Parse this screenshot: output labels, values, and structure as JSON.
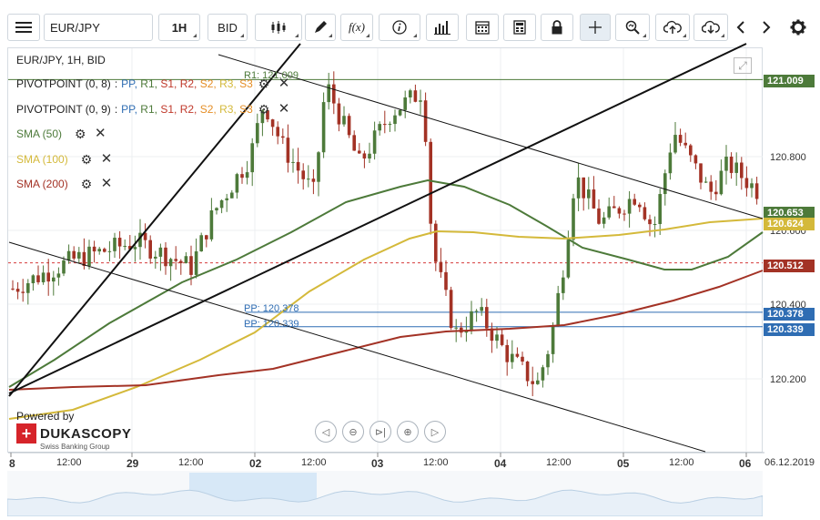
{
  "toolbar": {
    "menu_icon": "hamburger-icon",
    "symbol": "EUR/JPY",
    "timeframe": "1H",
    "price_type": "BID",
    "buttons": [
      {
        "name": "chart-type-button",
        "icon": "candles-icon"
      },
      {
        "name": "draw-button",
        "icon": "pen-icon"
      },
      {
        "name": "formula-button",
        "icon": "fx-icon",
        "text": "f(x)"
      },
      {
        "name": "info-button",
        "icon": "info-icon"
      },
      {
        "name": "volume-button",
        "icon": "bars-icon"
      },
      {
        "name": "calendar-button",
        "icon": "calendar-icon"
      },
      {
        "name": "calculator-button",
        "icon": "calculator-icon"
      },
      {
        "name": "lock-button",
        "icon": "lock-icon"
      },
      {
        "name": "crosshair-button",
        "icon": "crosshair-icon"
      },
      {
        "name": "zoom-button",
        "icon": "zoom-icon"
      },
      {
        "name": "upload-button",
        "icon": "cloud-upload-icon"
      },
      {
        "name": "download-button",
        "icon": "cloud-download-icon"
      },
      {
        "name": "scroll-left-button",
        "icon": "chevron-left-icon"
      },
      {
        "name": "scroll-right-button",
        "icon": "chevron-right-icon"
      },
      {
        "name": "settings-button",
        "icon": "gear-icon"
      }
    ]
  },
  "legend": {
    "title": "EUR/JPY, 1H, BID",
    "pivots": [
      {
        "label": "PIVOTPOINT (0, 8)",
        "sep": ":",
        "levels": [
          "PP,",
          "R1,",
          "S1,",
          "R2,",
          "S2,",
          "R3,",
          "S3"
        ]
      },
      {
        "label": "PIVOTPOINT (0, 9)",
        "sep": ":",
        "levels": [
          "PP,",
          "R1,",
          "S1,",
          "R2,",
          "S2,",
          "R3,",
          "S3"
        ]
      }
    ],
    "smas": [
      {
        "label": "SMA (50)",
        "color": "#4d7a3a"
      },
      {
        "label": "SMA (100)",
        "color": "#d4b93a"
      },
      {
        "label": "SMA (200)",
        "color": "#a33225"
      }
    ]
  },
  "colors": {
    "bull": "#4d7a3a",
    "bear": "#a33225",
    "pp": "#2f6db3",
    "r1": "#4d7a3a",
    "s1": "#c0392b",
    "r2": "#c0392b",
    "s2": "#e58e26",
    "r3": "#d4b93a",
    "s3": "#e58e26"
  },
  "overlay_labels": {
    "r1": "R1: 121.009",
    "pp1": "PP: 120.378",
    "pp2": "PP: 120.339"
  },
  "price_axis": {
    "labels": [
      "120.800",
      "120.600",
      "120.400",
      "120.200"
    ],
    "tags": [
      {
        "value": "121.009",
        "color": "#4d7a3a"
      },
      {
        "value": "120.653",
        "color": "#4d7a3a"
      },
      {
        "value": "120.624",
        "color": "#d4b93a"
      },
      {
        "value": "120.512",
        "color": "#a33225"
      },
      {
        "value": "120.378",
        "color": "#2f6db3"
      },
      {
        "value": "120.339",
        "color": "#2f6db3"
      }
    ]
  },
  "time_axis": {
    "labels": [
      "8",
      "12:00",
      "29",
      "12:00",
      "02",
      "12:00",
      "03",
      "12:00",
      "04",
      "12:00",
      "05",
      "12:00",
      "06",
      "06.12.2019"
    ]
  },
  "branding": {
    "powered_by": "Powered by",
    "name": "DUKASCOPY",
    "tagline": "Swiss Banking Group"
  },
  "navigation": [
    "chevron-left-icon",
    "zoom-out-icon",
    "fit-icon",
    "zoom-in-icon",
    "chevron-right-icon"
  ]
}
